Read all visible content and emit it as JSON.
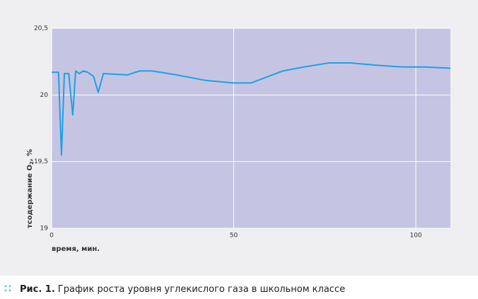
{
  "chart_data": {
    "type": "line",
    "ylabel": [
      "тсодержание O",
      "2",
      ", %"
    ],
    "xlabel": "время, мин.",
    "caption": {
      "label": "Рис. 1.",
      "text": "График роста уровня углекислого газа в школьном классе"
    },
    "x": [
      0,
      1.9,
      2.7,
      3.5,
      4.7,
      5.8,
      6.6,
      7.6,
      8.7,
      9.9,
      11.5,
      12.8,
      14.2,
      20.8,
      24.1,
      27.6,
      34.4,
      42.1,
      50,
      54.8,
      59.6,
      63.5,
      69.3,
      76.1,
      82,
      90.7,
      96.5,
      102.3,
      109.5
    ],
    "series": [
      {
        "color": "#1ea0e6",
        "values": [
          20.17,
          20.17,
          19.55,
          20.16,
          20.16,
          19.85,
          20.18,
          20.16,
          20.18,
          20.17,
          20.14,
          20.02,
          20.16,
          20.15,
          20.18,
          20.18,
          20.15,
          20.11,
          20.09,
          20.09,
          20.14,
          20.18,
          20.21,
          20.24,
          20.24,
          20.22,
          20.21,
          20.21,
          20.2
        ]
      }
    ],
    "xlim": [
      0,
      109.5
    ],
    "xticks": [
      0,
      50,
      100
    ],
    "ylim": [
      19,
      20.5
    ],
    "yticks": [
      19,
      {
        "value": 19.5,
        "label": "19,5"
      },
      20,
      {
        "value": 20.5,
        "label": "20,5"
      }
    ],
    "grid": true,
    "plot_color": "#c5c5e3"
  }
}
